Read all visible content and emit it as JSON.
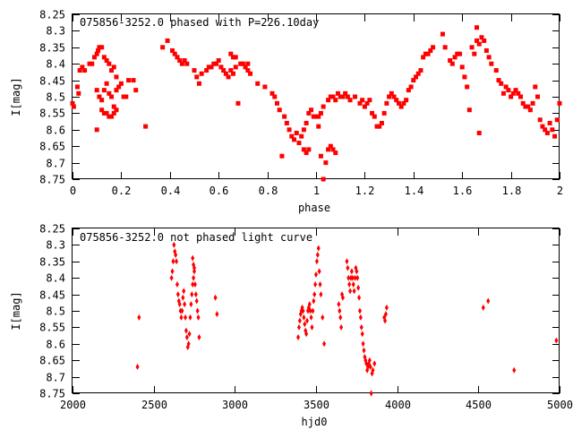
{
  "colors": {
    "points": "#ff0000",
    "axes": "#000000",
    "background": "#ffffff"
  },
  "chart_data": [
    {
      "type": "scatter",
      "title": "075856-3252.0 phased with P=226.10day",
      "xlabel": "phase",
      "ylabel": "I[mag]",
      "xlim": [
        0,
        2
      ],
      "ylim": [
        8.25,
        8.75
      ],
      "y_inverted": true,
      "grid": false,
      "marker": "square",
      "x_ticks": [
        "0",
        "0.2",
        "0.4",
        "0.6",
        "0.8",
        "1",
        "1.2",
        "1.4",
        "1.6",
        "1.8",
        "2"
      ],
      "y_ticks": [
        "8.25",
        "8.3",
        "8.35",
        "8.4",
        "8.45",
        "8.5",
        "8.55",
        "8.6",
        "8.65",
        "8.7",
        "8.75"
      ],
      "points": [
        [
          0.0,
          8.52
        ],
        [
          0.005,
          8.53
        ],
        [
          0.02,
          8.47
        ],
        [
          0.025,
          8.49
        ],
        [
          0.03,
          8.42
        ],
        [
          0.04,
          8.41
        ],
        [
          0.05,
          8.42
        ],
        [
          0.07,
          8.4
        ],
        [
          0.08,
          8.4
        ],
        [
          0.09,
          8.38
        ],
        [
          0.1,
          8.37
        ],
        [
          0.105,
          8.36
        ],
        [
          0.11,
          8.35
        ],
        [
          0.12,
          8.35
        ],
        [
          0.13,
          8.38
        ],
        [
          0.14,
          8.39
        ],
        [
          0.15,
          8.4
        ],
        [
          0.16,
          8.42
        ],
        [
          0.17,
          8.41
        ],
        [
          0.18,
          8.44
        ],
        [
          0.1,
          8.48
        ],
        [
          0.11,
          8.5
        ],
        [
          0.12,
          8.51
        ],
        [
          0.13,
          8.48
        ],
        [
          0.14,
          8.46
        ],
        [
          0.15,
          8.49
        ],
        [
          0.16,
          8.5
        ],
        [
          0.17,
          8.53
        ],
        [
          0.18,
          8.48
        ],
        [
          0.19,
          8.47
        ],
        [
          0.2,
          8.46
        ],
        [
          0.21,
          8.5
        ],
        [
          0.22,
          8.5
        ],
        [
          0.23,
          8.45
        ],
        [
          0.25,
          8.45
        ],
        [
          0.26,
          8.48
        ],
        [
          0.12,
          8.54
        ],
        [
          0.13,
          8.55
        ],
        [
          0.14,
          8.55
        ],
        [
          0.15,
          8.56
        ],
        [
          0.16,
          8.56
        ],
        [
          0.17,
          8.55
        ],
        [
          0.18,
          8.54
        ],
        [
          0.1,
          8.6
        ],
        [
          0.3,
          8.59
        ],
        [
          0.37,
          8.35
        ],
        [
          0.39,
          8.33
        ],
        [
          0.41,
          8.36
        ],
        [
          0.42,
          8.37
        ],
        [
          0.43,
          8.38
        ],
        [
          0.44,
          8.39
        ],
        [
          0.45,
          8.4
        ],
        [
          0.46,
          8.39
        ],
        [
          0.47,
          8.4
        ],
        [
          0.5,
          8.42
        ],
        [
          0.51,
          8.44
        ],
        [
          0.52,
          8.46
        ],
        [
          0.53,
          8.43
        ],
        [
          0.55,
          8.42
        ],
        [
          0.56,
          8.41
        ],
        [
          0.57,
          8.41
        ],
        [
          0.58,
          8.4
        ],
        [
          0.59,
          8.4
        ],
        [
          0.6,
          8.39
        ],
        [
          0.61,
          8.41
        ],
        [
          0.62,
          8.42
        ],
        [
          0.63,
          8.43
        ],
        [
          0.64,
          8.44
        ],
        [
          0.65,
          8.42
        ],
        [
          0.66,
          8.43
        ],
        [
          0.67,
          8.41
        ],
        [
          0.68,
          8.52
        ],
        [
          0.69,
          8.4
        ],
        [
          0.7,
          8.4
        ],
        [
          0.71,
          8.41
        ],
        [
          0.72,
          8.42
        ],
        [
          0.65,
          8.37
        ],
        [
          0.66,
          8.38
        ],
        [
          0.67,
          8.38
        ],
        [
          0.72,
          8.4
        ],
        [
          0.73,
          8.43
        ],
        [
          0.76,
          8.46
        ],
        [
          0.79,
          8.47
        ],
        [
          0.82,
          8.49
        ],
        [
          0.83,
          8.5
        ],
        [
          0.84,
          8.52
        ],
        [
          0.85,
          8.54
        ],
        [
          0.86,
          8.68
        ],
        [
          0.87,
          8.56
        ],
        [
          0.88,
          8.58
        ],
        [
          0.89,
          8.6
        ],
        [
          0.9,
          8.62
        ],
        [
          0.91,
          8.63
        ],
        [
          0.92,
          8.61
        ],
        [
          0.93,
          8.64
        ],
        [
          0.94,
          8.62
        ],
        [
          0.95,
          8.6
        ],
        [
          0.96,
          8.58
        ],
        [
          0.97,
          8.55
        ],
        [
          0.98,
          8.54
        ],
        [
          0.99,
          8.56
        ],
        [
          1.0,
          8.56
        ],
        [
          1.01,
          8.56
        ],
        [
          1.02,
          8.55
        ],
        [
          1.03,
          8.53
        ],
        [
          0.95,
          8.66
        ],
        [
          0.96,
          8.67
        ],
        [
          0.97,
          8.66
        ],
        [
          1.01,
          8.59
        ],
        [
          1.02,
          8.68
        ],
        [
          1.03,
          8.75
        ],
        [
          1.04,
          8.7
        ],
        [
          1.05,
          8.66
        ],
        [
          1.06,
          8.65
        ],
        [
          1.07,
          8.66
        ],
        [
          1.08,
          8.67
        ],
        [
          1.05,
          8.51
        ],
        [
          1.06,
          8.5
        ],
        [
          1.07,
          8.5
        ],
        [
          1.08,
          8.51
        ],
        [
          1.09,
          8.49
        ],
        [
          1.1,
          8.5
        ],
        [
          1.11,
          8.5
        ],
        [
          1.12,
          8.49
        ],
        [
          1.13,
          8.5
        ],
        [
          1.14,
          8.51
        ],
        [
          1.16,
          8.5
        ],
        [
          1.18,
          8.52
        ],
        [
          1.19,
          8.51
        ],
        [
          1.2,
          8.53
        ],
        [
          1.21,
          8.52
        ],
        [
          1.22,
          8.51
        ],
        [
          1.23,
          8.55
        ],
        [
          1.24,
          8.56
        ],
        [
          1.25,
          8.59
        ],
        [
          1.26,
          8.59
        ],
        [
          1.27,
          8.58
        ],
        [
          1.28,
          8.55
        ],
        [
          1.29,
          8.52
        ],
        [
          1.3,
          8.5
        ],
        [
          1.31,
          8.49
        ],
        [
          1.32,
          8.5
        ],
        [
          1.33,
          8.51
        ],
        [
          1.34,
          8.52
        ],
        [
          1.35,
          8.53
        ],
        [
          1.36,
          8.52
        ],
        [
          1.37,
          8.51
        ],
        [
          1.38,
          8.48
        ],
        [
          1.39,
          8.47
        ],
        [
          1.4,
          8.45
        ],
        [
          1.41,
          8.44
        ],
        [
          1.42,
          8.43
        ],
        [
          1.43,
          8.42
        ],
        [
          1.44,
          8.38
        ],
        [
          1.45,
          8.37
        ],
        [
          1.46,
          8.37
        ],
        [
          1.47,
          8.36
        ],
        [
          1.48,
          8.35
        ],
        [
          1.52,
          8.31
        ],
        [
          1.53,
          8.35
        ],
        [
          1.55,
          8.39
        ],
        [
          1.56,
          8.4
        ],
        [
          1.57,
          8.38
        ],
        [
          1.58,
          8.37
        ],
        [
          1.59,
          8.37
        ],
        [
          1.6,
          8.41
        ],
        [
          1.61,
          8.44
        ],
        [
          1.62,
          8.47
        ],
        [
          1.63,
          8.54
        ],
        [
          1.64,
          8.35
        ],
        [
          1.65,
          8.37
        ],
        [
          1.66,
          8.33
        ],
        [
          1.67,
          8.34
        ],
        [
          1.68,
          8.32
        ],
        [
          1.69,
          8.33
        ],
        [
          1.7,
          8.36
        ],
        [
          1.71,
          8.38
        ],
        [
          1.72,
          8.4
        ],
        [
          1.66,
          8.29
        ],
        [
          1.67,
          8.61
        ],
        [
          1.74,
          8.42
        ],
        [
          1.75,
          8.45
        ],
        [
          1.76,
          8.46
        ],
        [
          1.77,
          8.49
        ],
        [
          1.78,
          8.47
        ],
        [
          1.79,
          8.48
        ],
        [
          1.8,
          8.5
        ],
        [
          1.81,
          8.49
        ],
        [
          1.82,
          8.48
        ],
        [
          1.83,
          8.49
        ],
        [
          1.84,
          8.5
        ],
        [
          1.85,
          8.52
        ],
        [
          1.86,
          8.53
        ],
        [
          1.87,
          8.53
        ],
        [
          1.88,
          8.54
        ],
        [
          1.89,
          8.52
        ],
        [
          1.9,
          8.47
        ],
        [
          1.91,
          8.5
        ],
        [
          1.92,
          8.57
        ],
        [
          1.93,
          8.59
        ],
        [
          1.94,
          8.6
        ],
        [
          1.95,
          8.61
        ],
        [
          1.96,
          8.58
        ],
        [
          1.97,
          8.6
        ],
        [
          1.98,
          8.62
        ],
        [
          1.99,
          8.57
        ],
        [
          2.0,
          8.52
        ]
      ]
    },
    {
      "type": "scatter",
      "title": "075856-3252.0 not phased light curve",
      "xlabel": "hjd0",
      "ylabel": "I[mag]",
      "xlim": [
        2000,
        5000
      ],
      "ylim": [
        8.25,
        8.75
      ],
      "y_inverted": true,
      "grid": false,
      "marker": "diamond",
      "x_ticks": [
        "2000",
        "2500",
        "3000",
        "3500",
        "4000",
        "4500",
        "5000"
      ],
      "y_ticks": [
        "8.25",
        "8.3",
        "8.35",
        "8.4",
        "8.45",
        "8.5",
        "8.55",
        "8.6",
        "8.65",
        "8.7",
        "8.75"
      ],
      "points": [
        [
          2400,
          8.67
        ],
        [
          2410,
          8.52
        ],
        [
          2610,
          8.4
        ],
        [
          2615,
          8.38
        ],
        [
          2620,
          8.35
        ],
        [
          2625,
          8.3
        ],
        [
          2630,
          8.32
        ],
        [
          2635,
          8.33
        ],
        [
          2640,
          8.35
        ],
        [
          2645,
          8.42
        ],
        [
          2650,
          8.45
        ],
        [
          2655,
          8.47
        ],
        [
          2660,
          8.48
        ],
        [
          2665,
          8.5
        ],
        [
          2670,
          8.52
        ],
        [
          2675,
          8.5
        ],
        [
          2680,
          8.46
        ],
        [
          2685,
          8.44
        ],
        [
          2690,
          8.48
        ],
        [
          2695,
          8.52
        ],
        [
          2700,
          8.56
        ],
        [
          2705,
          8.58
        ],
        [
          2710,
          8.61
        ],
        [
          2715,
          8.6
        ],
        [
          2720,
          8.57
        ],
        [
          2725,
          8.52
        ],
        [
          2730,
          8.48
        ],
        [
          2735,
          8.45
        ],
        [
          2740,
          8.42
        ],
        [
          2745,
          8.4
        ],
        [
          2750,
          8.38
        ],
        [
          2740,
          8.34
        ],
        [
          2745,
          8.36
        ],
        [
          2750,
          8.37
        ],
        [
          2755,
          8.42
        ],
        [
          2760,
          8.45
        ],
        [
          2765,
          8.47
        ],
        [
          2770,
          8.5
        ],
        [
          2775,
          8.52
        ],
        [
          2780,
          8.58
        ],
        [
          2880,
          8.46
        ],
        [
          2890,
          8.51
        ],
        [
          3390,
          8.58
        ],
        [
          3395,
          8.55
        ],
        [
          3400,
          8.53
        ],
        [
          3405,
          8.51
        ],
        [
          3410,
          8.5
        ],
        [
          3415,
          8.49
        ],
        [
          3420,
          8.5
        ],
        [
          3425,
          8.52
        ],
        [
          3430,
          8.54
        ],
        [
          3435,
          8.56
        ],
        [
          3440,
          8.57
        ],
        [
          3445,
          8.53
        ],
        [
          3450,
          8.5
        ],
        [
          3455,
          8.49
        ],
        [
          3460,
          8.48
        ],
        [
          3465,
          8.5
        ],
        [
          3470,
          8.52
        ],
        [
          3475,
          8.55
        ],
        [
          3480,
          8.5
        ],
        [
          3485,
          8.47
        ],
        [
          3490,
          8.45
        ],
        [
          3495,
          8.42
        ],
        [
          3500,
          8.39
        ],
        [
          3505,
          8.35
        ],
        [
          3510,
          8.33
        ],
        [
          3515,
          8.31
        ],
        [
          3520,
          8.38
        ],
        [
          3525,
          8.42
        ],
        [
          3530,
          8.45
        ],
        [
          3540,
          8.52
        ],
        [
          3550,
          8.6
        ],
        [
          3640,
          8.48
        ],
        [
          3645,
          8.5
        ],
        [
          3650,
          8.52
        ],
        [
          3655,
          8.55
        ],
        [
          3660,
          8.45
        ],
        [
          3665,
          8.46
        ],
        [
          3690,
          8.35
        ],
        [
          3695,
          8.37
        ],
        [
          3700,
          8.4
        ],
        [
          3705,
          8.42
        ],
        [
          3710,
          8.44
        ],
        [
          3715,
          8.4
        ],
        [
          3720,
          8.38
        ],
        [
          3725,
          8.4
        ],
        [
          3730,
          8.42
        ],
        [
          3735,
          8.44
        ],
        [
          3740,
          8.4
        ],
        [
          3745,
          8.37
        ],
        [
          3750,
          8.38
        ],
        [
          3755,
          8.4
        ],
        [
          3760,
          8.43
        ],
        [
          3765,
          8.46
        ],
        [
          3770,
          8.5
        ],
        [
          3775,
          8.52
        ],
        [
          3780,
          8.55
        ],
        [
          3785,
          8.57
        ],
        [
          3790,
          8.6
        ],
        [
          3795,
          8.62
        ],
        [
          3800,
          8.64
        ],
        [
          3805,
          8.65
        ],
        [
          3810,
          8.66
        ],
        [
          3815,
          8.68
        ],
        [
          3820,
          8.67
        ],
        [
          3825,
          8.66
        ],
        [
          3830,
          8.65
        ],
        [
          3835,
          8.67
        ],
        [
          3840,
          8.75
        ],
        [
          3845,
          8.69
        ],
        [
          3850,
          8.68
        ],
        [
          3860,
          8.66
        ],
        [
          3920,
          8.52
        ],
        [
          3925,
          8.53
        ],
        [
          3930,
          8.51
        ],
        [
          3935,
          8.49
        ],
        [
          4530,
          8.49
        ],
        [
          4560,
          8.47
        ],
        [
          4720,
          8.68
        ],
        [
          4980,
          8.59
        ]
      ]
    }
  ]
}
